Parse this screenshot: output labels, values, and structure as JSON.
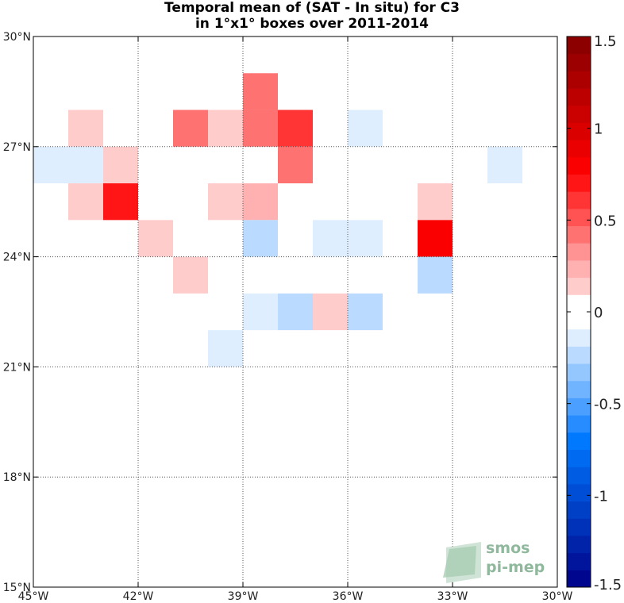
{
  "chart_data": {
    "type": "heatmap",
    "title_lines": [
      "Temporal mean of (SAT - In situ) for C3",
      "in 1°x1° boxes over 2011-2014"
    ],
    "xlim": [
      -45,
      -30
    ],
    "ylim": [
      15,
      30
    ],
    "xticks": [
      {
        "value": -45,
        "label": "45°W"
      },
      {
        "value": -42,
        "label": "42°W"
      },
      {
        "value": -39,
        "label": "39°W"
      },
      {
        "value": -36,
        "label": "36°W"
      },
      {
        "value": -33,
        "label": "33°W"
      },
      {
        "value": -30,
        "label": "30°W"
      }
    ],
    "yticks": [
      {
        "value": 30,
        "label": "30°N"
      },
      {
        "value": 27,
        "label": "27°N"
      },
      {
        "value": 24,
        "label": "24°N"
      },
      {
        "value": 21,
        "label": "21°N"
      },
      {
        "value": 18,
        "label": "18°N"
      },
      {
        "value": 15,
        "label": "15°N"
      }
    ],
    "grid": true,
    "colorbar": {
      "range": [
        -1.5,
        1.5
      ],
      "levels": 32,
      "ticks": [
        {
          "value": 1.5,
          "label": "1.5"
        },
        {
          "value": 1,
          "label": "1"
        },
        {
          "value": 0.5,
          "label": "0.5"
        },
        {
          "value": 0,
          "label": "0"
        },
        {
          "value": -0.5,
          "label": "-0.5"
        },
        {
          "value": -1,
          "label": "-1"
        },
        {
          "value": -1.5,
          "label": "-1.5"
        }
      ]
    },
    "cells": [
      {
        "lon": -38.5,
        "lat": 28.5,
        "value": 0.38
      },
      {
        "lon": -43.5,
        "lat": 27.5,
        "value": 0.15
      },
      {
        "lon": -40.5,
        "lat": 27.5,
        "value": 0.45
      },
      {
        "lon": -39.5,
        "lat": 27.5,
        "value": 0.15
      },
      {
        "lon": -38.5,
        "lat": 27.5,
        "value": 0.42
      },
      {
        "lon": -37.5,
        "lat": 27.5,
        "value": 0.65
      },
      {
        "lon": -35.5,
        "lat": 27.5,
        "value": -0.12
      },
      {
        "lon": -44.5,
        "lat": 26.5,
        "value": -0.12
      },
      {
        "lon": -43.5,
        "lat": 26.5,
        "value": -0.12
      },
      {
        "lon": -42.5,
        "lat": 26.5,
        "value": 0.18
      },
      {
        "lon": -37.5,
        "lat": 26.5,
        "value": 0.42
      },
      {
        "lon": -31.5,
        "lat": 26.5,
        "value": -0.12
      },
      {
        "lon": -43.5,
        "lat": 25.5,
        "value": 0.18
      },
      {
        "lon": -42.5,
        "lat": 25.5,
        "value": 0.72
      },
      {
        "lon": -39.5,
        "lat": 25.5,
        "value": 0.18
      },
      {
        "lon": -38.5,
        "lat": 25.5,
        "value": 0.28
      },
      {
        "lon": -33.5,
        "lat": 25.5,
        "value": 0.15
      },
      {
        "lon": -41.5,
        "lat": 24.5,
        "value": 0.15
      },
      {
        "lon": -38.5,
        "lat": 24.5,
        "value": -0.25
      },
      {
        "lon": -36.5,
        "lat": 24.5,
        "value": -0.12
      },
      {
        "lon": -35.5,
        "lat": 24.5,
        "value": -0.12
      },
      {
        "lon": -33.5,
        "lat": 24.5,
        "value": 0.82
      },
      {
        "lon": -40.5,
        "lat": 23.5,
        "value": 0.15
      },
      {
        "lon": -33.5,
        "lat": 23.5,
        "value": -0.28
      },
      {
        "lon": -38.5,
        "lat": 22.5,
        "value": -0.15
      },
      {
        "lon": -37.5,
        "lat": 22.5,
        "value": -0.25
      },
      {
        "lon": -36.5,
        "lat": 22.5,
        "value": 0.18
      },
      {
        "lon": -35.5,
        "lat": 22.5,
        "value": -0.28
      },
      {
        "lon": -39.5,
        "lat": 21.5,
        "value": -0.12
      }
    ]
  },
  "logo": {
    "line1": "smos",
    "line2": "pi-mep"
  }
}
